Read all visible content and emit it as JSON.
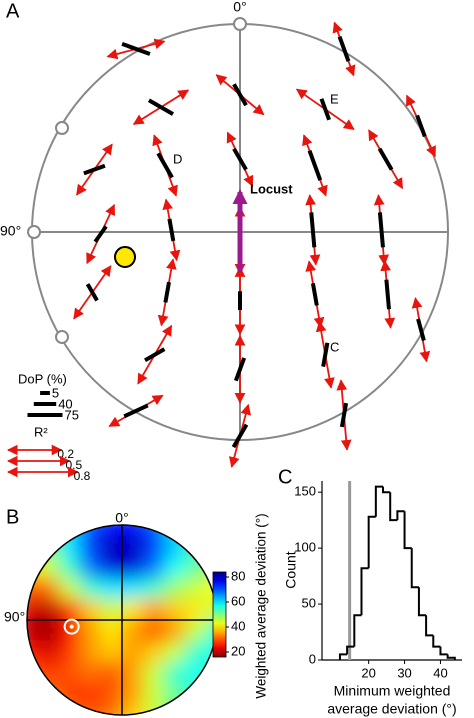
{
  "chart_data": [
    {
      "type": "vector-polar",
      "label": "A",
      "north_label": "0°",
      "west_label": "90°",
      "arrow_color": "#e8140e",
      "bar_color": "#000000",
      "locust_label": "Locust",
      "locust_color": "#9b1b8e",
      "annotations": [
        "D",
        "E",
        "C"
      ],
      "vectors": {
        "x": [
          -0.5,
          0.5,
          -0.38,
          0,
          0.41,
          0.87,
          -0.7,
          -0.36,
          0,
          0.36,
          0.7,
          -0.67,
          -0.33,
          0,
          0.35,
          0.68,
          -0.71,
          -0.35,
          0,
          0.36,
          0.71,
          0.87,
          -0.41,
          0,
          0.41,
          -0.5,
          0,
          0.5
        ],
        "y": [
          0.88,
          0.88,
          0.6,
          0.66,
          0.59,
          0.51,
          0.3,
          0.32,
          0.35,
          0.32,
          0.35,
          -0.01,
          0.01,
          -0.04,
          0.01,
          0.01,
          -0.29,
          -0.29,
          -0.33,
          -0.3,
          -0.3,
          -0.47,
          -0.59,
          -0.66,
          -0.59,
          -0.86,
          -0.98,
          -0.88
        ],
        "arrow_angle": [
          15,
          -70,
          32,
          -40,
          -35,
          -65,
          55,
          -70,
          -65,
          -70,
          -60,
          65,
          -80,
          90,
          -85,
          -85,
          55,
          80,
          90,
          -80,
          -85,
          -80,
          60,
          90,
          -80,
          30,
          75,
          -85
        ],
        "r2": [
          0.4,
          0.3,
          0.6,
          0.5,
          0.8,
          0.7,
          0.5,
          0.6,
          0.4,
          0.6,
          0.7,
          0.6,
          0.5,
          0.7,
          0.8,
          0.8,
          0.6,
          0.7,
          0.7,
          0.7,
          0.7,
          0.6,
          0.7,
          0.7,
          0.7,
          0.5,
          0.6,
          0.8
        ],
        "bar_angle": [
          -20,
          -70,
          -30,
          -60,
          -70,
          -70,
          20,
          -60,
          -60,
          -70,
          -60,
          55,
          -80,
          90,
          -85,
          -85,
          -60,
          80,
          90,
          -80,
          -85,
          -75,
          30,
          70,
          80,
          25,
          60,
          80
        ],
        "dop": [
          60,
          50,
          55,
          45,
          40,
          40,
          40,
          55,
          45,
          65,
          45,
          30,
          40,
          90,
          75,
          75,
          30,
          35,
          30,
          40,
          60,
          40,
          40,
          45,
          45,
          50,
          50,
          45
        ]
      },
      "dop_legend": {
        "title": "DoP (%)",
        "values": [
          5,
          40,
          75
        ]
      },
      "r2_legend": {
        "title": "R²",
        "values": [
          0.2,
          0.5,
          0.8
        ]
      }
    },
    {
      "type": "heatmap",
      "label": "B",
      "north_label": "0°",
      "west_label": "90°",
      "z": [
        [
          50,
          55,
          60,
          70,
          75,
          75,
          70,
          60,
          55,
          50
        ],
        [
          45,
          50,
          60,
          72,
          80,
          80,
          72,
          62,
          55,
          50
        ],
        [
          40,
          45,
          55,
          68,
          78,
          78,
          68,
          58,
          52,
          48
        ],
        [
          30,
          32,
          45,
          55,
          60,
          60,
          55,
          48,
          45,
          42
        ],
        [
          22,
          20,
          28,
          38,
          45,
          40,
          35,
          38,
          40,
          45
        ],
        [
          20,
          18,
          25,
          35,
          40,
          35,
          30,
          35,
          45,
          55
        ],
        [
          25,
          22,
          28,
          35,
          38,
          35,
          38,
          45,
          55,
          58
        ],
        [
          30,
          28,
          30,
          32,
          30,
          35,
          45,
          55,
          58,
          55
        ],
        [
          35,
          32,
          28,
          28,
          30,
          35,
          45,
          52,
          55,
          50
        ],
        [
          40,
          38,
          32,
          30,
          32,
          38,
          45,
          50,
          50,
          48
        ]
      ],
      "minimum": {
        "x": -0.53,
        "y": -0.07
      },
      "clim": [
        16,
        84
      ],
      "colorbar_ticks": [
        20,
        40,
        60,
        80
      ],
      "colorbar_label": "Weighted average deviation (°)"
    },
    {
      "type": "histogram",
      "label": "C",
      "ylabel": "Count",
      "xlabel": [
        "Minimum weighted",
        "average deviation (°)"
      ],
      "bins": [
        12,
        14,
        16,
        18,
        20,
        22,
        24,
        26,
        28,
        30,
        32,
        34,
        36,
        38,
        40,
        42,
        44
      ],
      "counts": [
        5,
        12,
        40,
        82,
        128,
        155,
        150,
        125,
        133,
        100,
        65,
        40,
        22,
        12,
        5,
        2
      ],
      "threshold": 14.7,
      "threshold_color": "#999999",
      "color": "#000000",
      "xlim": [
        7,
        46
      ],
      "xticks": [
        20,
        30,
        40
      ],
      "ylim": [
        0,
        160
      ],
      "yticks": [
        0,
        50,
        100,
        150
      ]
    }
  ]
}
